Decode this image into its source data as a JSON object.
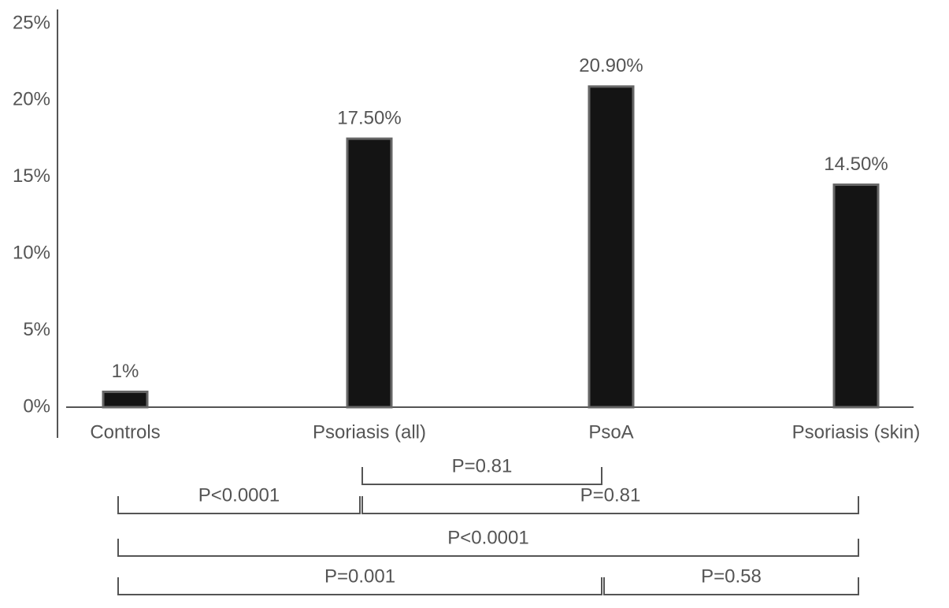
{
  "chart_data": {
    "type": "bar",
    "categories": [
      "Controls",
      "Psoriasis (all)",
      "PsoA",
      "Psoriasis (skin)"
    ],
    "values": [
      1,
      17.5,
      20.9,
      14.5
    ],
    "value_labels": [
      "1%",
      "17.50%",
      "20.90%",
      "14.50%"
    ],
    "color": "#141414",
    "ylim": [
      0,
      25
    ],
    "yticks": [
      {
        "value": 0,
        "label": "0%"
      },
      {
        "value": 5,
        "label": "5%"
      },
      {
        "value": 10,
        "label": "10%"
      },
      {
        "value": 15,
        "label": "15%"
      },
      {
        "value": 20,
        "label": "20%"
      },
      {
        "value": 25,
        "label": "25%"
      }
    ],
    "comparisons": [
      {
        "label": "P=0.81",
        "groups": [
          "Psoriasis (all)",
          "PsoA"
        ]
      },
      {
        "label": "P<0.0001",
        "groups": [
          "Controls",
          "Psoriasis (all)"
        ]
      },
      {
        "label": "P=0.81",
        "groups": [
          "Psoriasis (all)",
          "Psoriasis (skin)"
        ]
      },
      {
        "label": "P<0.0001",
        "groups": [
          "Controls",
          "Psoriasis (skin)"
        ]
      },
      {
        "label": "P=0.001",
        "groups": [
          "Controls",
          "PsoA"
        ]
      },
      {
        "label": "P=0.58",
        "groups": [
          "PsoA",
          "Psoriasis (skin)"
        ]
      }
    ]
  }
}
